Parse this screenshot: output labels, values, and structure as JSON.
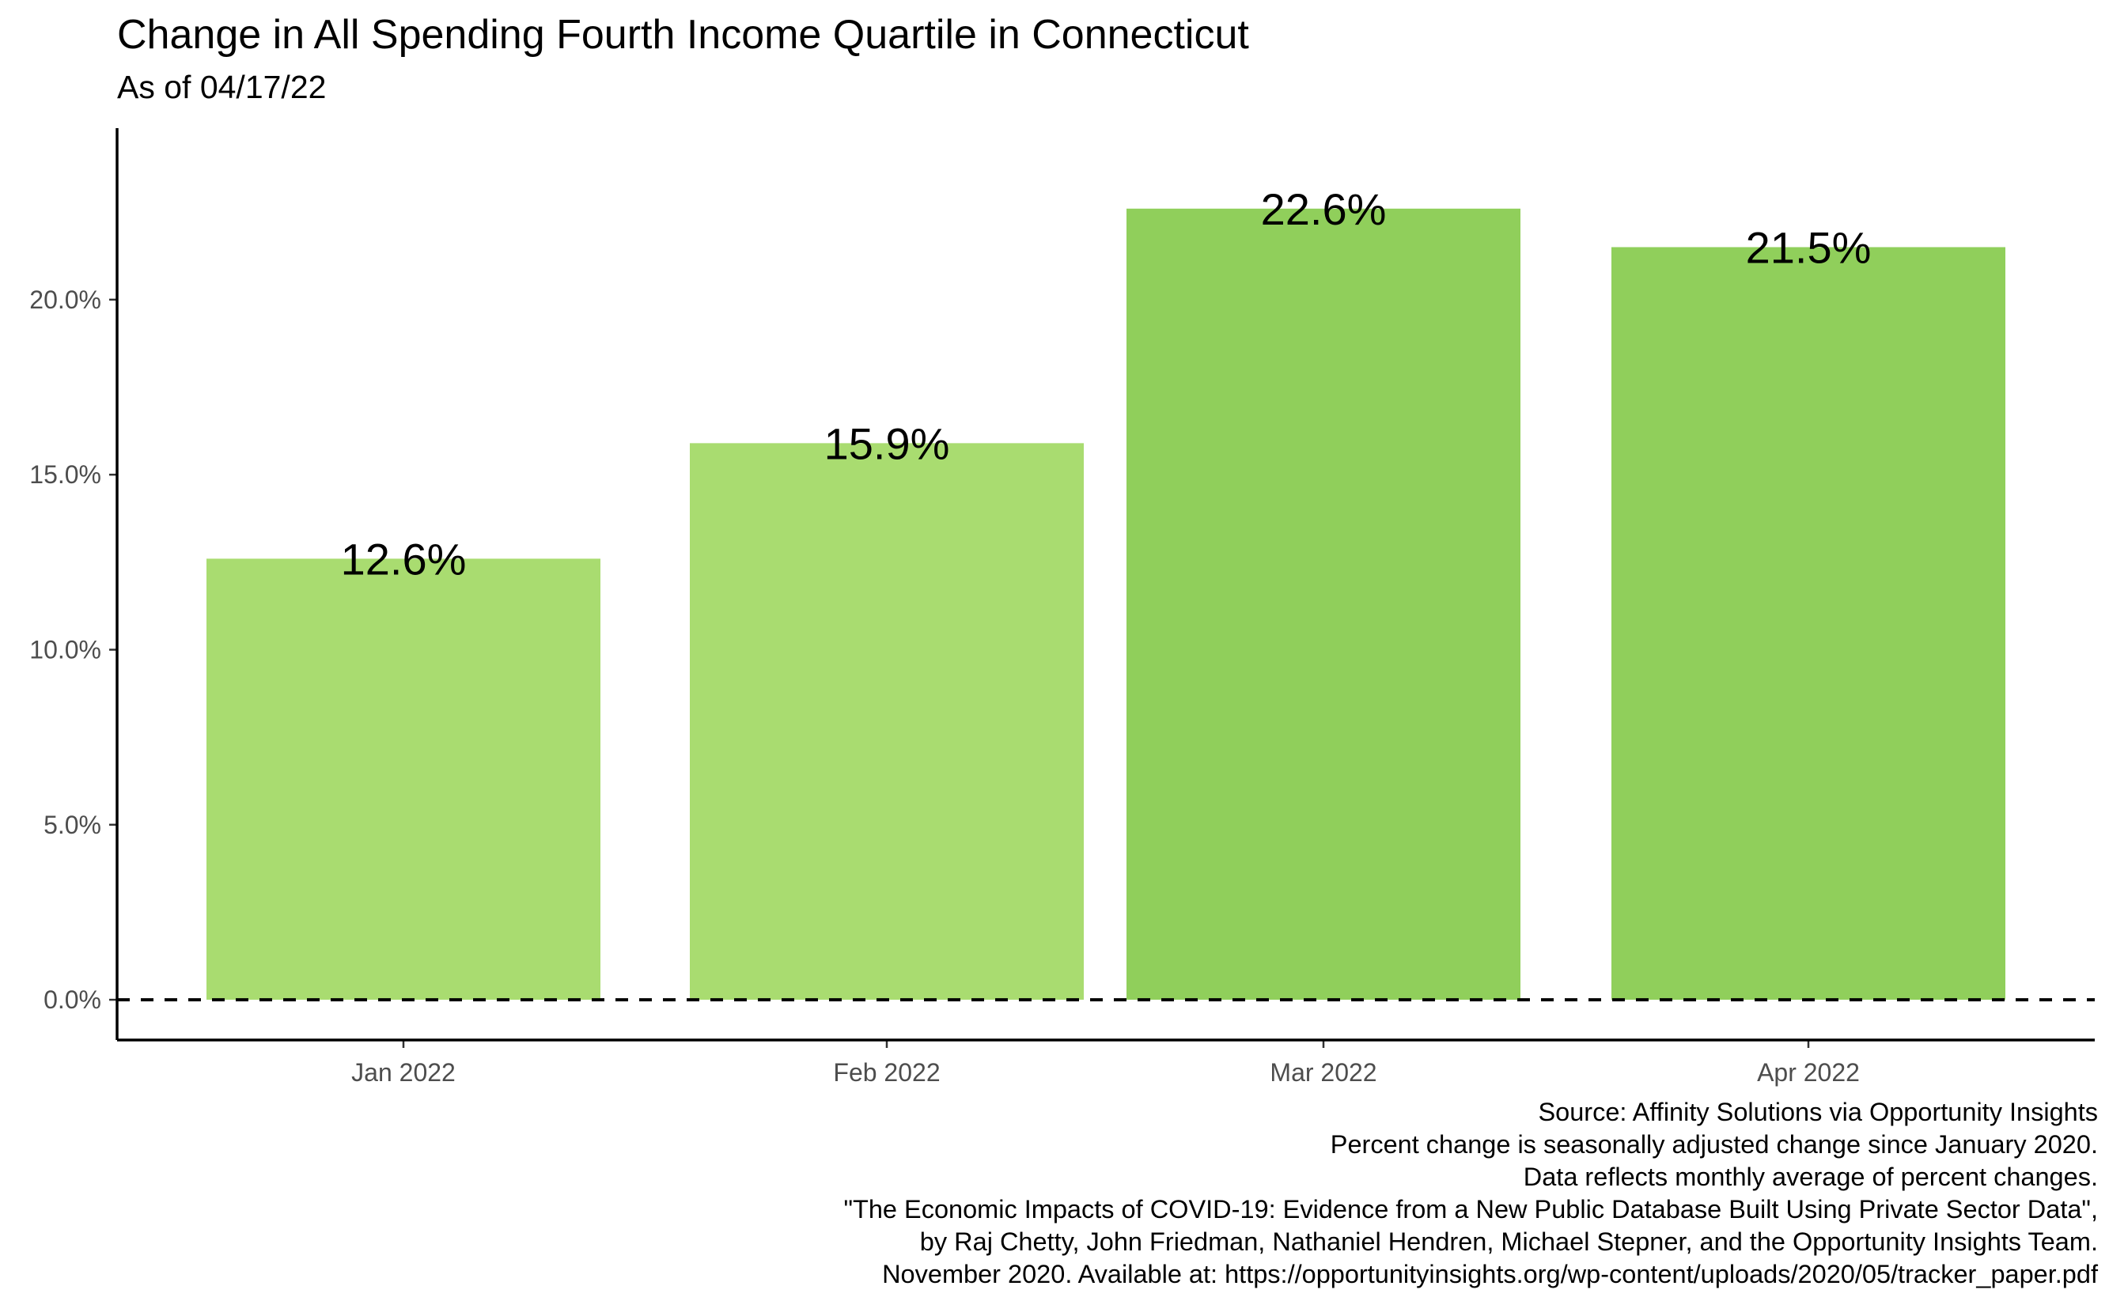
{
  "title": "Change in All Spending Fourth Income Quartile in Connecticut",
  "subtitle": "As of 04/17/22",
  "chart_data": {
    "type": "bar",
    "title": "Change in All Spending Fourth Income Quartile in Connecticut",
    "subtitle": "As of 04/17/22",
    "xlabel": "",
    "ylabel": "",
    "categories": [
      "Jan 2022",
      "Feb 2022",
      "Mar 2022",
      "Apr 2022"
    ],
    "values": [
      12.6,
      15.9,
      22.6,
      21.5
    ],
    "value_labels": [
      "12.6%",
      "15.9%",
      "22.6%",
      "21.5%"
    ],
    "bar_colors": [
      "#a9dc70",
      "#a9dc70",
      "#90cf5b",
      "#90cf5b"
    ],
    "yticks": [
      0,
      5,
      10,
      15,
      20
    ],
    "ytick_labels": [
      "0.0%",
      "5.0%",
      "10.0%",
      "15.0%",
      "20.0%"
    ],
    "ylim": [
      -1.15,
      24.9
    ],
    "reference_line": {
      "y": 0,
      "style": "dashed",
      "color": "#000000"
    },
    "grid": false,
    "legend": "none"
  },
  "caption_lines": [
    "Source: Affinity Solutions via Opportunity Insights",
    "Percent change is seasonally adjusted change since January 2020.",
    "Data reflects monthly average of percent changes.",
    "\"The Economic Impacts of COVID-19: Evidence from a New Public Database Built Using Private Sector Data\",",
    "by Raj Chetty, John Friedman, Nathaniel Hendren, Michael Stepner, and the Opportunity Insights Team.",
    "November 2020. Available at: https://opportunityinsights.org/wp-content/uploads/2020/05/tracker_paper.pdf"
  ]
}
